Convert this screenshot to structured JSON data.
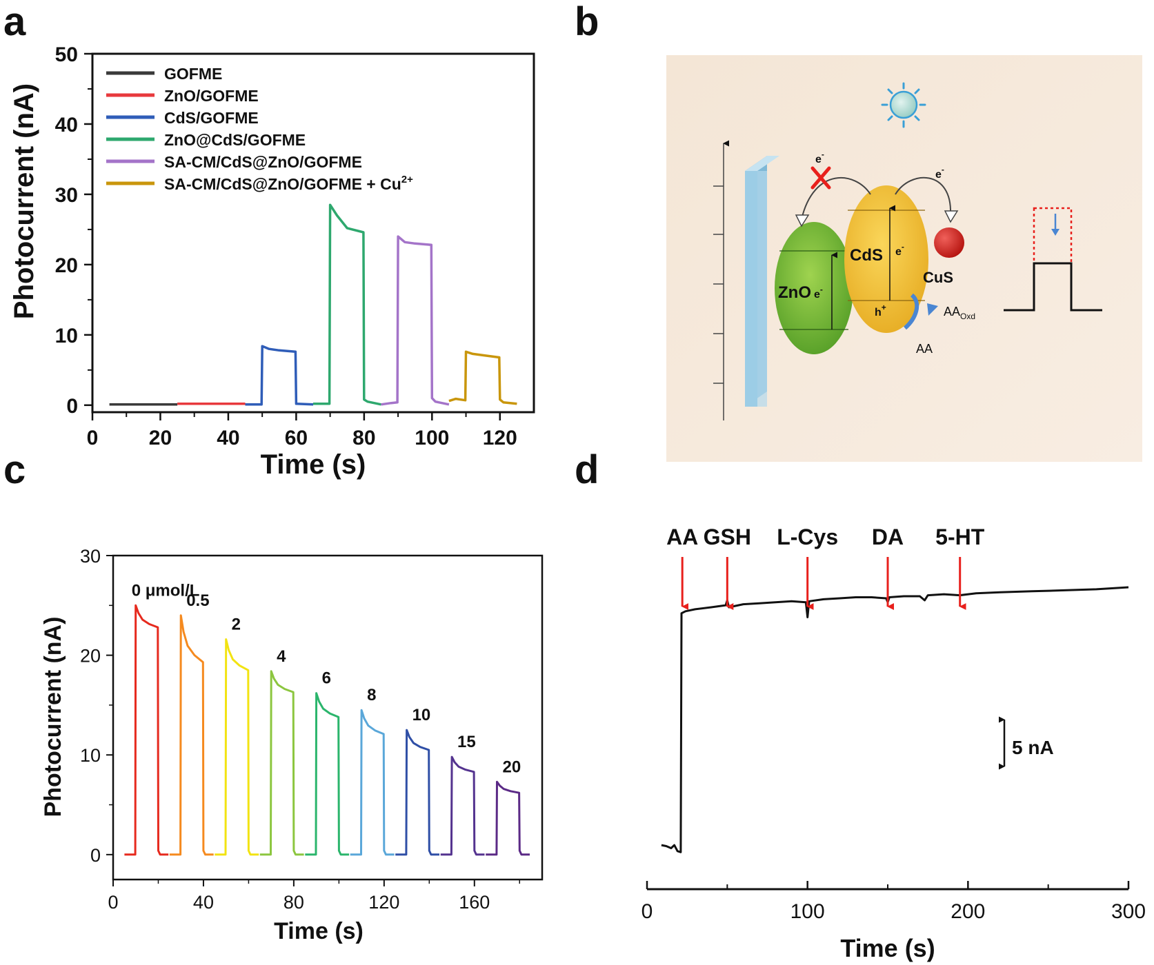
{
  "panel_labels": [
    "a",
    "b",
    "c",
    "d"
  ],
  "chart_data": [
    {
      "panel": "a",
      "type": "line",
      "title": "",
      "xlabel": "Time (s)",
      "ylabel": "Photocurrent (nA)",
      "xlim": [
        0,
        130
      ],
      "ylim": [
        -1,
        50
      ],
      "xticks": [
        0,
        20,
        40,
        60,
        80,
        100,
        120
      ],
      "yticks": [
        0,
        10,
        20,
        30,
        40,
        50
      ],
      "legend_position": "top-left",
      "series": [
        {
          "name": "GOFME",
          "legend": "GOFME",
          "legend_sup": "",
          "color": "#3a3a3a",
          "points": [
            [
              5,
              0.1
            ],
            [
              25,
              0.1
            ]
          ]
        },
        {
          "name": "ZnO/GOFME",
          "legend": "ZnO/GOFME",
          "legend_sup": "",
          "color": "#e8393d",
          "points": [
            [
              25,
              0.2
            ],
            [
              45,
              0.2
            ]
          ]
        },
        {
          "name": "CdS/GOFME",
          "legend": "CdS/GOFME",
          "legend_sup": "",
          "color": "#2f5db8",
          "points": [
            [
              45,
              0.1
            ],
            [
              49.8,
              0.1
            ],
            [
              50,
              8.4
            ],
            [
              52,
              8.0
            ],
            [
              55,
              7.8
            ],
            [
              59.8,
              7.6
            ],
            [
              60,
              0.2
            ],
            [
              65,
              0.1
            ]
          ]
        },
        {
          "name": "ZnO@CdS/GOFME",
          "legend": "ZnO@CdS/GOFME",
          "legend_sup": "",
          "color": "#2ea86e",
          "points": [
            [
              65,
              0.2
            ],
            [
              69.8,
              0.2
            ],
            [
              70,
              28.5
            ],
            [
              72,
              27.0
            ],
            [
              75,
              25.2
            ],
            [
              79.8,
              24.6
            ],
            [
              80,
              0.8
            ],
            [
              81,
              0.5
            ],
            [
              85,
              0.1
            ]
          ]
        },
        {
          "name": "SA-CM/CdS@ZnO/GOFME",
          "legend": "SA-CM/CdS@ZnO/GOFME",
          "legend_sup": "",
          "color": "#a474c9",
          "points": [
            [
              85,
              0.1
            ],
            [
              88,
              0.3
            ],
            [
              89.8,
              0.4
            ],
            [
              90,
              24.0
            ],
            [
              92,
              23.2
            ],
            [
              95,
              23.0
            ],
            [
              99.8,
              22.8
            ],
            [
              100,
              1.0
            ],
            [
              101,
              0.5
            ],
            [
              105,
              0.1
            ]
          ]
        },
        {
          "name": "SA-CM/CdS@ZnO/GOFME + Cu2+",
          "legend": "SA-CM/CdS@ZnO/GOFME + Cu",
          "legend_sup": "2+",
          "color": "#c9960c",
          "points": [
            [
              105,
              0.6
            ],
            [
              107,
              0.9
            ],
            [
              109.8,
              0.7
            ],
            [
              110,
              7.6
            ],
            [
              112,
              7.3
            ],
            [
              115,
              7.1
            ],
            [
              119.8,
              6.8
            ],
            [
              120,
              0.8
            ],
            [
              121,
              0.4
            ],
            [
              125,
              0.2
            ]
          ]
        }
      ]
    },
    {
      "panel": "c",
      "type": "line",
      "title": "",
      "xlabel": "Time (s)",
      "ylabel": "Photocurrent (nA)",
      "xlim": [
        0,
        190
      ],
      "ylim": [
        -2.5,
        30
      ],
      "xticks": [
        0,
        40,
        80,
        120,
        160
      ],
      "yticks": [
        0,
        10,
        20,
        30
      ],
      "concentration_unit": "μmol/L",
      "series": [
        {
          "name": "0",
          "label": "0 μmol/L",
          "color": "#e62a1e",
          "on": 10,
          "off": 20,
          "peak": 25.0,
          "end": 22.8
        },
        {
          "name": "0.5",
          "label": "0.5",
          "color": "#f58a1f",
          "on": 30,
          "off": 40,
          "peak": 24.0,
          "end": 19.3
        },
        {
          "name": "2",
          "label": "2",
          "color": "#f2e312",
          "on": 50,
          "off": 60,
          "peak": 21.6,
          "end": 18.5
        },
        {
          "name": "4",
          "label": "4",
          "color": "#8cc63f",
          "on": 70,
          "off": 80,
          "peak": 18.4,
          "end": 16.3
        },
        {
          "name": "6",
          "label": "6",
          "color": "#2bb56c",
          "on": 90,
          "off": 100,
          "peak": 16.2,
          "end": 13.8
        },
        {
          "name": "8",
          "label": "8",
          "color": "#5aa7d9",
          "on": 110,
          "off": 120,
          "peak": 14.5,
          "end": 12.1
        },
        {
          "name": "10",
          "label": "10",
          "color": "#2f4fa6",
          "on": 130,
          "off": 140,
          "peak": 12.5,
          "end": 10.5
        },
        {
          "name": "15",
          "label": "15",
          "color": "#54338f",
          "on": 150,
          "off": 160,
          "peak": 9.8,
          "end": 8.3
        },
        {
          "name": "20",
          "label": "20",
          "color": "#5b2a86",
          "on": 170,
          "off": 180,
          "peak": 7.3,
          "end": 6.2
        }
      ]
    },
    {
      "panel": "d",
      "type": "line",
      "title": "",
      "xlabel": "Time (s)",
      "ylabel": "",
      "xlim": [
        0,
        300
      ],
      "ylim": [
        -2,
        30
      ],
      "xticks": [
        0,
        100,
        200,
        300
      ],
      "scale_bar": {
        "label": "5 nA",
        "value": 5
      },
      "annotations": [
        {
          "label": "AA",
          "x": 22
        },
        {
          "label": "GSH",
          "x": 50
        },
        {
          "label": "L-Cys",
          "x": 100
        },
        {
          "label": "DA",
          "x": 150
        },
        {
          "label": "5-HT",
          "x": 195
        }
      ],
      "series": [
        {
          "name": "trace",
          "color": "#111111",
          "points": [
            [
              9,
              0.2
            ],
            [
              12,
              0.1
            ],
            [
              15,
              -0.1
            ],
            [
              17,
              0.2
            ],
            [
              19,
              -0.4
            ],
            [
              21,
              -0.5
            ],
            [
              21.5,
              23.4
            ],
            [
              24,
              23.6
            ],
            [
              30,
              23.8
            ],
            [
              40,
              24.0
            ],
            [
              49,
              24.2
            ],
            [
              50,
              24.7
            ],
            [
              51,
              24.0
            ],
            [
              60,
              24.3
            ],
            [
              70,
              24.4
            ],
            [
              80,
              24.5
            ],
            [
              90,
              24.6
            ],
            [
              99,
              24.5
            ],
            [
              100,
              23.0
            ],
            [
              101,
              24.6
            ],
            [
              110,
              24.8
            ],
            [
              120,
              24.9
            ],
            [
              130,
              25.0
            ],
            [
              140,
              25.0
            ],
            [
              149,
              24.9
            ],
            [
              150,
              24.5
            ],
            [
              151,
              25.0
            ],
            [
              160,
              25.1
            ],
            [
              170,
              25.1
            ],
            [
              173,
              24.7
            ],
            [
              175,
              25.2
            ],
            [
              185,
              25.3
            ],
            [
              195,
              25.2
            ],
            [
              205,
              25.4
            ],
            [
              220,
              25.5
            ],
            [
              240,
              25.6
            ],
            [
              260,
              25.7
            ],
            [
              280,
              25.8
            ],
            [
              300,
              26.0
            ]
          ]
        }
      ]
    }
  ],
  "diagram": {
    "zno_label": "ZnO",
    "cds_label": "CdS",
    "cus_label": "CuS",
    "electron": "e",
    "electron_sup": "-",
    "hole": "h",
    "hole_sup": "+",
    "aa_label": "AA",
    "aa_oxd": "AA",
    "aa_oxd_sub": "Oxd"
  },
  "colors": {
    "background_b": "#f7eadc",
    "zno": "#6ab233",
    "cds": "#f3c12d",
    "cus": "#d9221c",
    "electrode": "#9ccde6",
    "sun": "#b9ddd6",
    "arrow_red": "#e8201c",
    "arrow_blue": "#4a86d2"
  }
}
